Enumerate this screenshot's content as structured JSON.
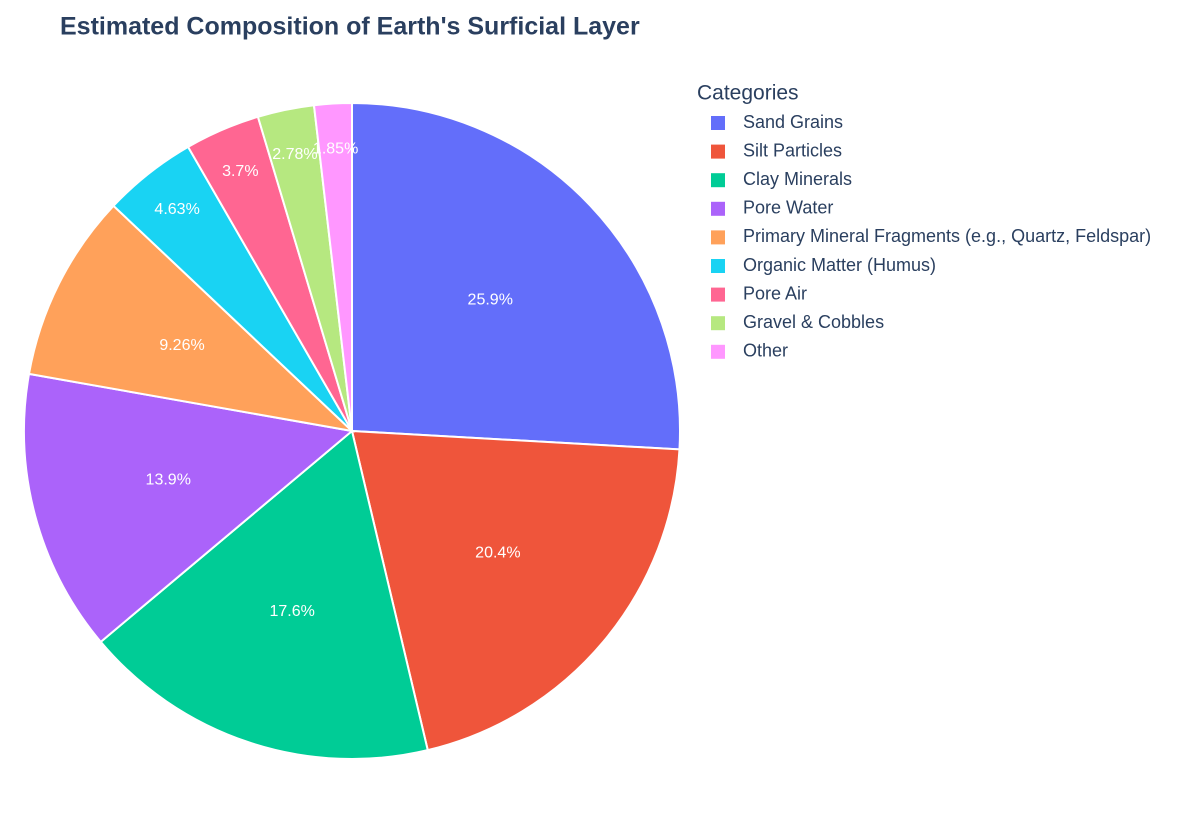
{
  "chart_data": {
    "type": "pie",
    "title": "Estimated Composition of Earth's Surficial Layer",
    "legend_title": "Categories",
    "legend_position": "right",
    "categories": [
      "Sand Grains",
      "Silt Particles",
      "Clay Minerals",
      "Pore Water",
      "Primary Mineral Fragments (e.g., Quartz, Feldspar)",
      "Organic Matter (Humus)",
      "Pore Air",
      "Gravel & Cobbles",
      "Other"
    ],
    "values": [
      25.9,
      20.4,
      17.6,
      13.9,
      9.26,
      4.63,
      3.7,
      2.78,
      1.85
    ],
    "value_labels": [
      "25.9%",
      "20.4%",
      "17.6%",
      "13.9%",
      "9.26%",
      "4.63%",
      "3.7%",
      "2.78%",
      "1.85%"
    ],
    "colors": [
      "#636efa",
      "#ef553b",
      "#00cc96",
      "#ab63fa",
      "#ffa15a",
      "#19d3f3",
      "#ff6692",
      "#b6e880",
      "#ff97ff"
    ]
  }
}
